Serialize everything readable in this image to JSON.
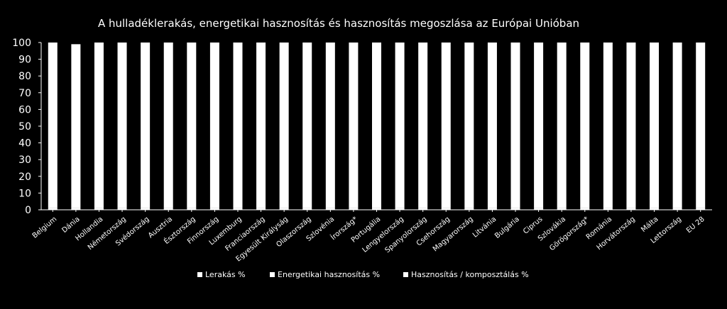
{
  "chart_data": {
    "type": "bar",
    "title": "A hulladéklerakás, energetikai hasznosítás és hasznosítás megoszlása az Európai Unióban",
    "categories": [
      "Belgium",
      "Dánia",
      "Hollandia",
      "Németország",
      "Svédország",
      "Ausztria",
      "Észtország",
      "Finnország",
      "Luxemburg",
      "Franciaország",
      "Egyesült Királyság",
      "Olaszország",
      "Szlovénia",
      "Írország*",
      "Portugália",
      "Lengyelország",
      "Spanyolország",
      "Csehország",
      "Magyarország",
      "Litvánia",
      "Bulgária",
      "Ciprus",
      "Szlovákia",
      "Görögország*",
      "Románia",
      "Horvátország",
      "Málta",
      "Lettország",
      "EU 28"
    ],
    "series": [
      {
        "name": "Lerakás %",
        "values": [
          1,
          1,
          1,
          1,
          1,
          1,
          1,
          1,
          1,
          1,
          1,
          1,
          1,
          1,
          1,
          1,
          1,
          1,
          1,
          1,
          1,
          1,
          1,
          1,
          1,
          1,
          1,
          1,
          1
        ]
      },
      {
        "name": "Energetikai hasznosítás %",
        "values": [
          0,
          0,
          0,
          0,
          0,
          0,
          0,
          0,
          0,
          0,
          0,
          0,
          0,
          0,
          0,
          0,
          0,
          0,
          0,
          0,
          0,
          0,
          0,
          0,
          0,
          0,
          0,
          0,
          0
        ]
      },
      {
        "name": "Hasznosítás / komposztálás %",
        "values": [
          99,
          98,
          99,
          99,
          99,
          99,
          99,
          99,
          99,
          99,
          99,
          99,
          99,
          99,
          99,
          99,
          99,
          99,
          99,
          99,
          99,
          99,
          99,
          99,
          99,
          99,
          99,
          99,
          99
        ]
      }
    ],
    "yticks": [
      "0",
      "10",
      "20",
      "30",
      "40",
      "50",
      "60",
      "70",
      "80",
      "90",
      "100"
    ],
    "ylim": [
      0,
      100
    ],
    "grid": false,
    "legend_position": "bottom",
    "colors": {
      "background": "#000000",
      "bar": "#ffffff",
      "text": "#ffffff",
      "axis": "#ffffff"
    }
  }
}
